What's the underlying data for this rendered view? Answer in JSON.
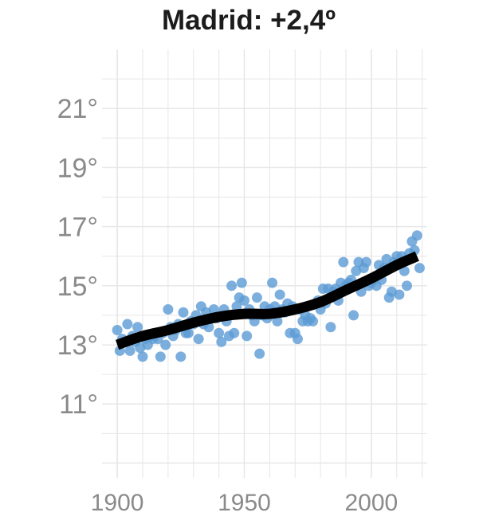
{
  "chart_data": {
    "type": "scatter",
    "title": "Madrid: +2,4º",
    "xlabel": "",
    "ylabel": "",
    "xlim": [
      1894,
      2022
    ],
    "ylim": [
      8.5,
      23
    ],
    "grid": true,
    "x_ticks": [
      1900,
      1950,
      2000
    ],
    "x_tick_labels": [
      "1900",
      "1950",
      "2000"
    ],
    "y_ticks": [
      11,
      13,
      15,
      17,
      19,
      21
    ],
    "y_tick_labels": [
      "11°",
      "13°",
      "15°",
      "17°",
      "19°",
      "21°"
    ],
    "point_color": "#5b9bd5",
    "trend_color": "#000000",
    "points": [
      {
        "x": 1900,
        "y": 13.5
      },
      {
        "x": 1901,
        "y": 12.8
      },
      {
        "x": 1902,
        "y": 13.2
      },
      {
        "x": 1904,
        "y": 13.7
      },
      {
        "x": 1905,
        "y": 12.8
      },
      {
        "x": 1906,
        "y": 13.3
      },
      {
        "x": 1907,
        "y": 13.1
      },
      {
        "x": 1908,
        "y": 13.6
      },
      {
        "x": 1909,
        "y": 12.9
      },
      {
        "x": 1910,
        "y": 12.6
      },
      {
        "x": 1911,
        "y": 13.2
      },
      {
        "x": 1912,
        "y": 13.0
      },
      {
        "x": 1913,
        "y": 13.3
      },
      {
        "x": 1914,
        "y": 13.2
      },
      {
        "x": 1916,
        "y": 13.2
      },
      {
        "x": 1917,
        "y": 12.6
      },
      {
        "x": 1918,
        "y": 13.4
      },
      {
        "x": 1919,
        "y": 13.0
      },
      {
        "x": 1920,
        "y": 14.2
      },
      {
        "x": 1921,
        "y": 13.6
      },
      {
        "x": 1922,
        "y": 13.3
      },
      {
        "x": 1923,
        "y": 13.5
      },
      {
        "x": 1924,
        "y": 13.7
      },
      {
        "x": 1925,
        "y": 12.6
      },
      {
        "x": 1926,
        "y": 14.1
      },
      {
        "x": 1927,
        "y": 13.4
      },
      {
        "x": 1928,
        "y": 13.4
      },
      {
        "x": 1929,
        "y": 13.8
      },
      {
        "x": 1930,
        "y": 13.7
      },
      {
        "x": 1931,
        "y": 14.0
      },
      {
        "x": 1932,
        "y": 13.2
      },
      {
        "x": 1933,
        "y": 14.3
      },
      {
        "x": 1934,
        "y": 13.7
      },
      {
        "x": 1935,
        "y": 14.1
      },
      {
        "x": 1936,
        "y": 13.6
      },
      {
        "x": 1937,
        "y": 13.9
      },
      {
        "x": 1938,
        "y": 14.2
      },
      {
        "x": 1939,
        "y": 13.9
      },
      {
        "x": 1940,
        "y": 13.4
      },
      {
        "x": 1941,
        "y": 13.1
      },
      {
        "x": 1942,
        "y": 14.2
      },
      {
        "x": 1943,
        "y": 13.8
      },
      {
        "x": 1944,
        "y": 13.3
      },
      {
        "x": 1945,
        "y": 15.0
      },
      {
        "x": 1946,
        "y": 13.4
      },
      {
        "x": 1947,
        "y": 14.3
      },
      {
        "x": 1948,
        "y": 14.6
      },
      {
        "x": 1949,
        "y": 15.1
      },
      {
        "x": 1950,
        "y": 14.5
      },
      {
        "x": 1951,
        "y": 13.3
      },
      {
        "x": 1952,
        "y": 14.2
      },
      {
        "x": 1953,
        "y": 14.0
      },
      {
        "x": 1954,
        "y": 13.8
      },
      {
        "x": 1955,
        "y": 14.6
      },
      {
        "x": 1956,
        "y": 12.7
      },
      {
        "x": 1957,
        "y": 14.0
      },
      {
        "x": 1958,
        "y": 14.3
      },
      {
        "x": 1959,
        "y": 13.9
      },
      {
        "x": 1960,
        "y": 14.2
      },
      {
        "x": 1961,
        "y": 15.1
      },
      {
        "x": 1962,
        "y": 14.3
      },
      {
        "x": 1963,
        "y": 13.8
      },
      {
        "x": 1964,
        "y": 14.7
      },
      {
        "x": 1965,
        "y": 14.2
      },
      {
        "x": 1966,
        "y": 14.1
      },
      {
        "x": 1967,
        "y": 14.4
      },
      {
        "x": 1968,
        "y": 13.4
      },
      {
        "x": 1969,
        "y": 14.3
      },
      {
        "x": 1970,
        "y": 13.4
      },
      {
        "x": 1971,
        "y": 13.2
      },
      {
        "x": 1972,
        "y": 14.2
      },
      {
        "x": 1973,
        "y": 13.8
      },
      {
        "x": 1974,
        "y": 14.0
      },
      {
        "x": 1975,
        "y": 13.8
      },
      {
        "x": 1976,
        "y": 13.9
      },
      {
        "x": 1977,
        "y": 13.8
      },
      {
        "x": 1978,
        "y": 14.4
      },
      {
        "x": 1979,
        "y": 14.5
      },
      {
        "x": 1980,
        "y": 14.2
      },
      {
        "x": 1981,
        "y": 14.9
      },
      {
        "x": 1982,
        "y": 14.4
      },
      {
        "x": 1983,
        "y": 14.9
      },
      {
        "x": 1984,
        "y": 13.6
      },
      {
        "x": 1985,
        "y": 14.8
      },
      {
        "x": 1986,
        "y": 14.9
      },
      {
        "x": 1987,
        "y": 14.5
      },
      {
        "x": 1988,
        "y": 15.1
      },
      {
        "x": 1989,
        "y": 15.8
      },
      {
        "x": 1990,
        "y": 15.0
      },
      {
        "x": 1991,
        "y": 15.1
      },
      {
        "x": 1992,
        "y": 15.2
      },
      {
        "x": 1993,
        "y": 14.0
      },
      {
        "x": 1994,
        "y": 15.5
      },
      {
        "x": 1995,
        "y": 15.8
      },
      {
        "x": 1996,
        "y": 14.8
      },
      {
        "x": 1997,
        "y": 15.6
      },
      {
        "x": 1998,
        "y": 15.8
      },
      {
        "x": 1999,
        "y": 15.0
      },
      {
        "x": 2000,
        "y": 15.1
      },
      {
        "x": 2001,
        "y": 15.2
      },
      {
        "x": 2002,
        "y": 15.0
      },
      {
        "x": 2003,
        "y": 15.7
      },
      {
        "x": 2004,
        "y": 15.2
      },
      {
        "x": 2005,
        "y": 15.6
      },
      {
        "x": 2006,
        "y": 15.9
      },
      {
        "x": 2007,
        "y": 14.6
      },
      {
        "x": 2008,
        "y": 14.8
      },
      {
        "x": 2009,
        "y": 15.8
      },
      {
        "x": 2010,
        "y": 16.0
      },
      {
        "x": 2011,
        "y": 14.7
      },
      {
        "x": 2012,
        "y": 16.0
      },
      {
        "x": 2013,
        "y": 15.5
      },
      {
        "x": 2014,
        "y": 15.0
      },
      {
        "x": 2015,
        "y": 16.1
      },
      {
        "x": 2016,
        "y": 16.5
      },
      {
        "x": 2017,
        "y": 16.2
      },
      {
        "x": 2018,
        "y": 16.7
      },
      {
        "x": 2019,
        "y": 15.6
      }
    ],
    "trend": [
      {
        "x": 1900,
        "y": 13.0
      },
      {
        "x": 1910,
        "y": 13.3
      },
      {
        "x": 1920,
        "y": 13.5
      },
      {
        "x": 1930,
        "y": 13.75
      },
      {
        "x": 1940,
        "y": 13.95
      },
      {
        "x": 1950,
        "y": 14.05
      },
      {
        "x": 1960,
        "y": 14.05
      },
      {
        "x": 1970,
        "y": 14.2
      },
      {
        "x": 1980,
        "y": 14.45
      },
      {
        "x": 1990,
        "y": 14.85
      },
      {
        "x": 2000,
        "y": 15.25
      },
      {
        "x": 2010,
        "y": 15.7
      },
      {
        "x": 2018,
        "y": 16.0
      }
    ]
  }
}
